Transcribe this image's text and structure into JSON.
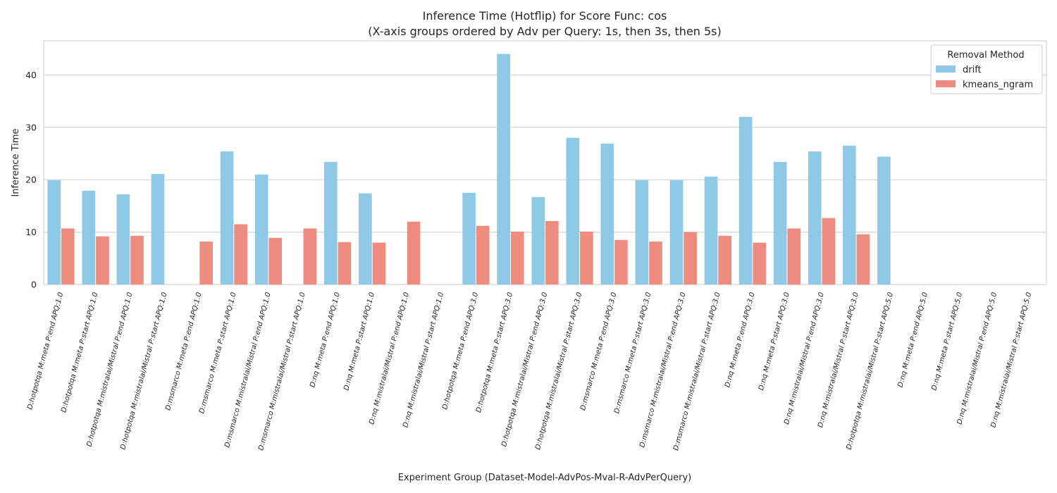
{
  "chart_data": {
    "type": "bar",
    "title": "Inference Time (Hotflip) for Score Func: cos",
    "subtitle": "(X-axis groups ordered by Adv per Query: 1s, then 3s, then 5s)",
    "xlabel": "Experiment Group (Dataset-Model-AdvPos-Mval-R-AdvPerQuery)",
    "ylabel": "Inference Time",
    "ylim": [
      0,
      46.5
    ],
    "yticks": [
      "0",
      "10",
      "20",
      "30",
      "40"
    ],
    "grid": true,
    "legend": {
      "title": "Removal Method",
      "placement": "top-right"
    },
    "categories": [
      "D:hotpotqa M:meta P:end APQ:1.0",
      "D:hotpotqa M:meta P:start APQ:1.0",
      "D:hotpotqa M:mistralai/Mistral P:end APQ:1.0",
      "D:hotpotqa M:mistralai/Mistral P:start APQ:1.0",
      "D:msmarco M:meta P:end APQ:1.0",
      "D:msmarco M:meta P:start APQ:1.0",
      "D:msmarco M:mistralai/Mistral P:end APQ:1.0",
      "D:msmarco M:mistralai/Mistral P:start APQ:1.0",
      "D:nq M:meta P:end APQ:1.0",
      "D:nq M:meta P:start APQ:1.0",
      "D:nq M:mistralai/Mistral P:end APQ:1.0",
      "D:nq M:mistralai/Mistral P:start APQ:1.0",
      "D:hotpotqa M:meta P:end APQ:3.0",
      "D:hotpotqa M:meta P:start APQ:3.0",
      "D:hotpotqa M:mistralai/Mistral P:end APQ:3.0",
      "D:hotpotqa M:mistralai/Mistral P:start APQ:3.0",
      "D:msmarco M:meta P:end APQ:3.0",
      "D:msmarco M:meta P:start APQ:3.0",
      "D:msmarco M:mistralai/Mistral P:end APQ:3.0",
      "D:msmarco M:mistralai/Mistral P:start APQ:3.0",
      "D:nq M:meta P:end APQ:3.0",
      "D:nq M:meta P:start APQ:3.0",
      "D:nq M:mistralai/Mistral P:end APQ:3.0",
      "D:nq M:mistralai/Mistral P:start APQ:3.0",
      "D:hotpotqa M:mistralai/Mistral P:start APQ:5.0",
      "D:nq M:meta P:end APQ:5.0",
      "D:nq M:meta P:start APQ:5.0",
      "D:nq M:mistralai/Mistral P:end APQ:5.0",
      "D:nq M:mistralai/Mistral P:start APQ:5.0"
    ],
    "series": [
      {
        "name": "drift",
        "color": "#8ecae6",
        "values": [
          19.9,
          17.9,
          17.2,
          21.1,
          null,
          25.4,
          21.0,
          null,
          23.4,
          17.4,
          null,
          null,
          17.5,
          44.0,
          16.7,
          28.0,
          26.9,
          19.9,
          19.9,
          20.6,
          32.0,
          23.4,
          25.4,
          26.5,
          24.4,
          null,
          null,
          null,
          null
        ]
      },
      {
        "name": "kmeans_ngram",
        "color": "#ee8c80",
        "values": [
          10.7,
          9.2,
          9.3,
          null,
          8.2,
          11.5,
          8.9,
          10.7,
          8.1,
          8.0,
          12.0,
          null,
          11.2,
          10.1,
          12.1,
          10.1,
          8.5,
          8.2,
          10.0,
          9.3,
          8.0,
          10.7,
          12.7,
          9.6,
          null,
          null,
          null,
          null,
          null
        ]
      }
    ]
  }
}
